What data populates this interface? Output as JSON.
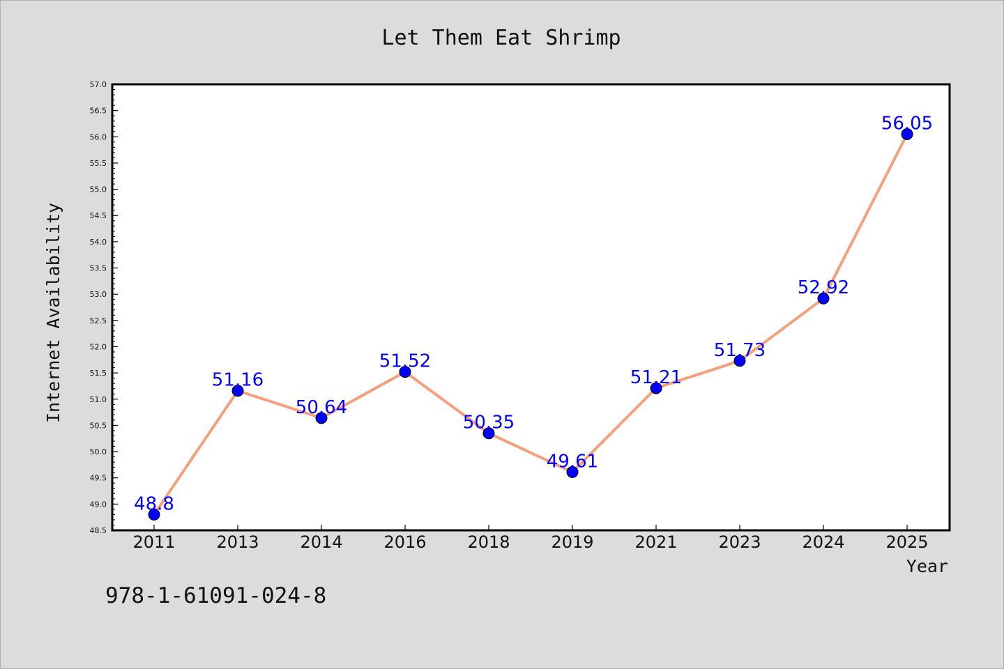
{
  "chart_data": {
    "type": "line",
    "title": "Let Them Eat Shrimp",
    "xlabel": "Year",
    "ylabel": "Internet Availability",
    "categories": [
      "2011",
      "2013",
      "2014",
      "2016",
      "2018",
      "2019",
      "2021",
      "2023",
      "2024",
      "2025"
    ],
    "series": [
      {
        "values": [
          48.8,
          51.16,
          50.64,
          51.52,
          50.35,
          49.61,
          51.21,
          51.73,
          52.92,
          56.05
        ],
        "data_labels": [
          "48.8",
          "51.16",
          "50.64",
          "51.52",
          "50.35",
          "49.61",
          "51.21",
          "51.73",
          "52.92",
          "56.05"
        ],
        "line_color": "#f4a07c",
        "marker_color": "#0000ff"
      }
    ],
    "ylim": [
      48.5,
      57.0
    ],
    "yticks": [
      "48.5",
      "49.0",
      "49.5",
      "50.0",
      "50.5",
      "51.0",
      "51.5",
      "52.0",
      "52.5",
      "53.0",
      "53.5",
      "54.0",
      "54.5",
      "55.0",
      "55.5",
      "56.0",
      "56.5",
      "57.0"
    ],
    "grid": false,
    "label_color": "#0000ff"
  },
  "footer": "978-1-61091-024-8"
}
